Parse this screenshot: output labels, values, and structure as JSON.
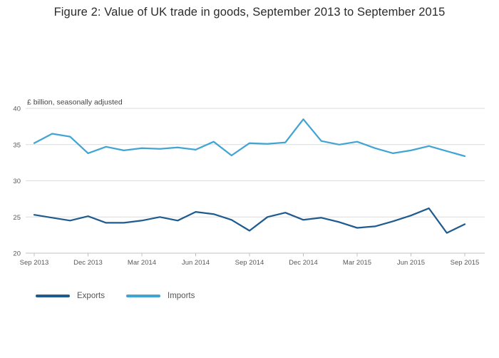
{
  "chart_data": {
    "type": "line",
    "title": "Figure 2: Value of UK trade in goods, September 2013 to September 2015",
    "unit_label": "£ billion, seasonally adjusted",
    "x": [
      "Sep 2013",
      "Oct 2013",
      "Nov 2013",
      "Dec 2013",
      "Jan 2014",
      "Feb 2014",
      "Mar 2014",
      "Apr 2014",
      "May 2014",
      "Jun 2014",
      "Jul 2014",
      "Aug 2014",
      "Sep 2014",
      "Oct 2014",
      "Nov 2014",
      "Dec 2014",
      "Jan 2015",
      "Feb 2015",
      "Mar 2015",
      "Apr 2015",
      "May 2015",
      "Jun 2015",
      "Jul 2015",
      "Aug 2015",
      "Sep 2015"
    ],
    "x_tick_labels": [
      "Sep 2013",
      "Dec 2013",
      "Mar 2014",
      "Jun 2014",
      "Sep 2014",
      "Dec 2014",
      "Mar 2015",
      "Jun 2015",
      "Sep 2015"
    ],
    "ylim": [
      20,
      40
    ],
    "y_ticks": [
      20,
      25,
      30,
      35,
      40
    ],
    "grid": true,
    "legend_position": "bottom",
    "series": [
      {
        "name": "Exports",
        "color": "#1f5b8e",
        "values": [
          25.3,
          24.9,
          24.5,
          25.1,
          24.2,
          24.2,
          24.5,
          25.0,
          24.5,
          25.7,
          25.4,
          24.6,
          23.1,
          25.0,
          25.6,
          24.6,
          24.9,
          24.3,
          23.5,
          23.7,
          24.4,
          25.2,
          26.2,
          22.8,
          24.0
        ]
      },
      {
        "name": "Imports",
        "color": "#41a5d3",
        "values": [
          35.2,
          36.5,
          36.1,
          33.8,
          34.7,
          34.2,
          34.5,
          34.4,
          34.6,
          34.3,
          35.4,
          33.5,
          35.2,
          35.1,
          35.3,
          38.5,
          35.5,
          35.0,
          35.4,
          34.5,
          33.8,
          34.2,
          34.8,
          34.1,
          33.4
        ]
      }
    ],
    "style": {
      "gridline_color": "#dcdcdc",
      "axis_line_color": "#c0c0c0",
      "axis_text_color": "#595959"
    }
  }
}
